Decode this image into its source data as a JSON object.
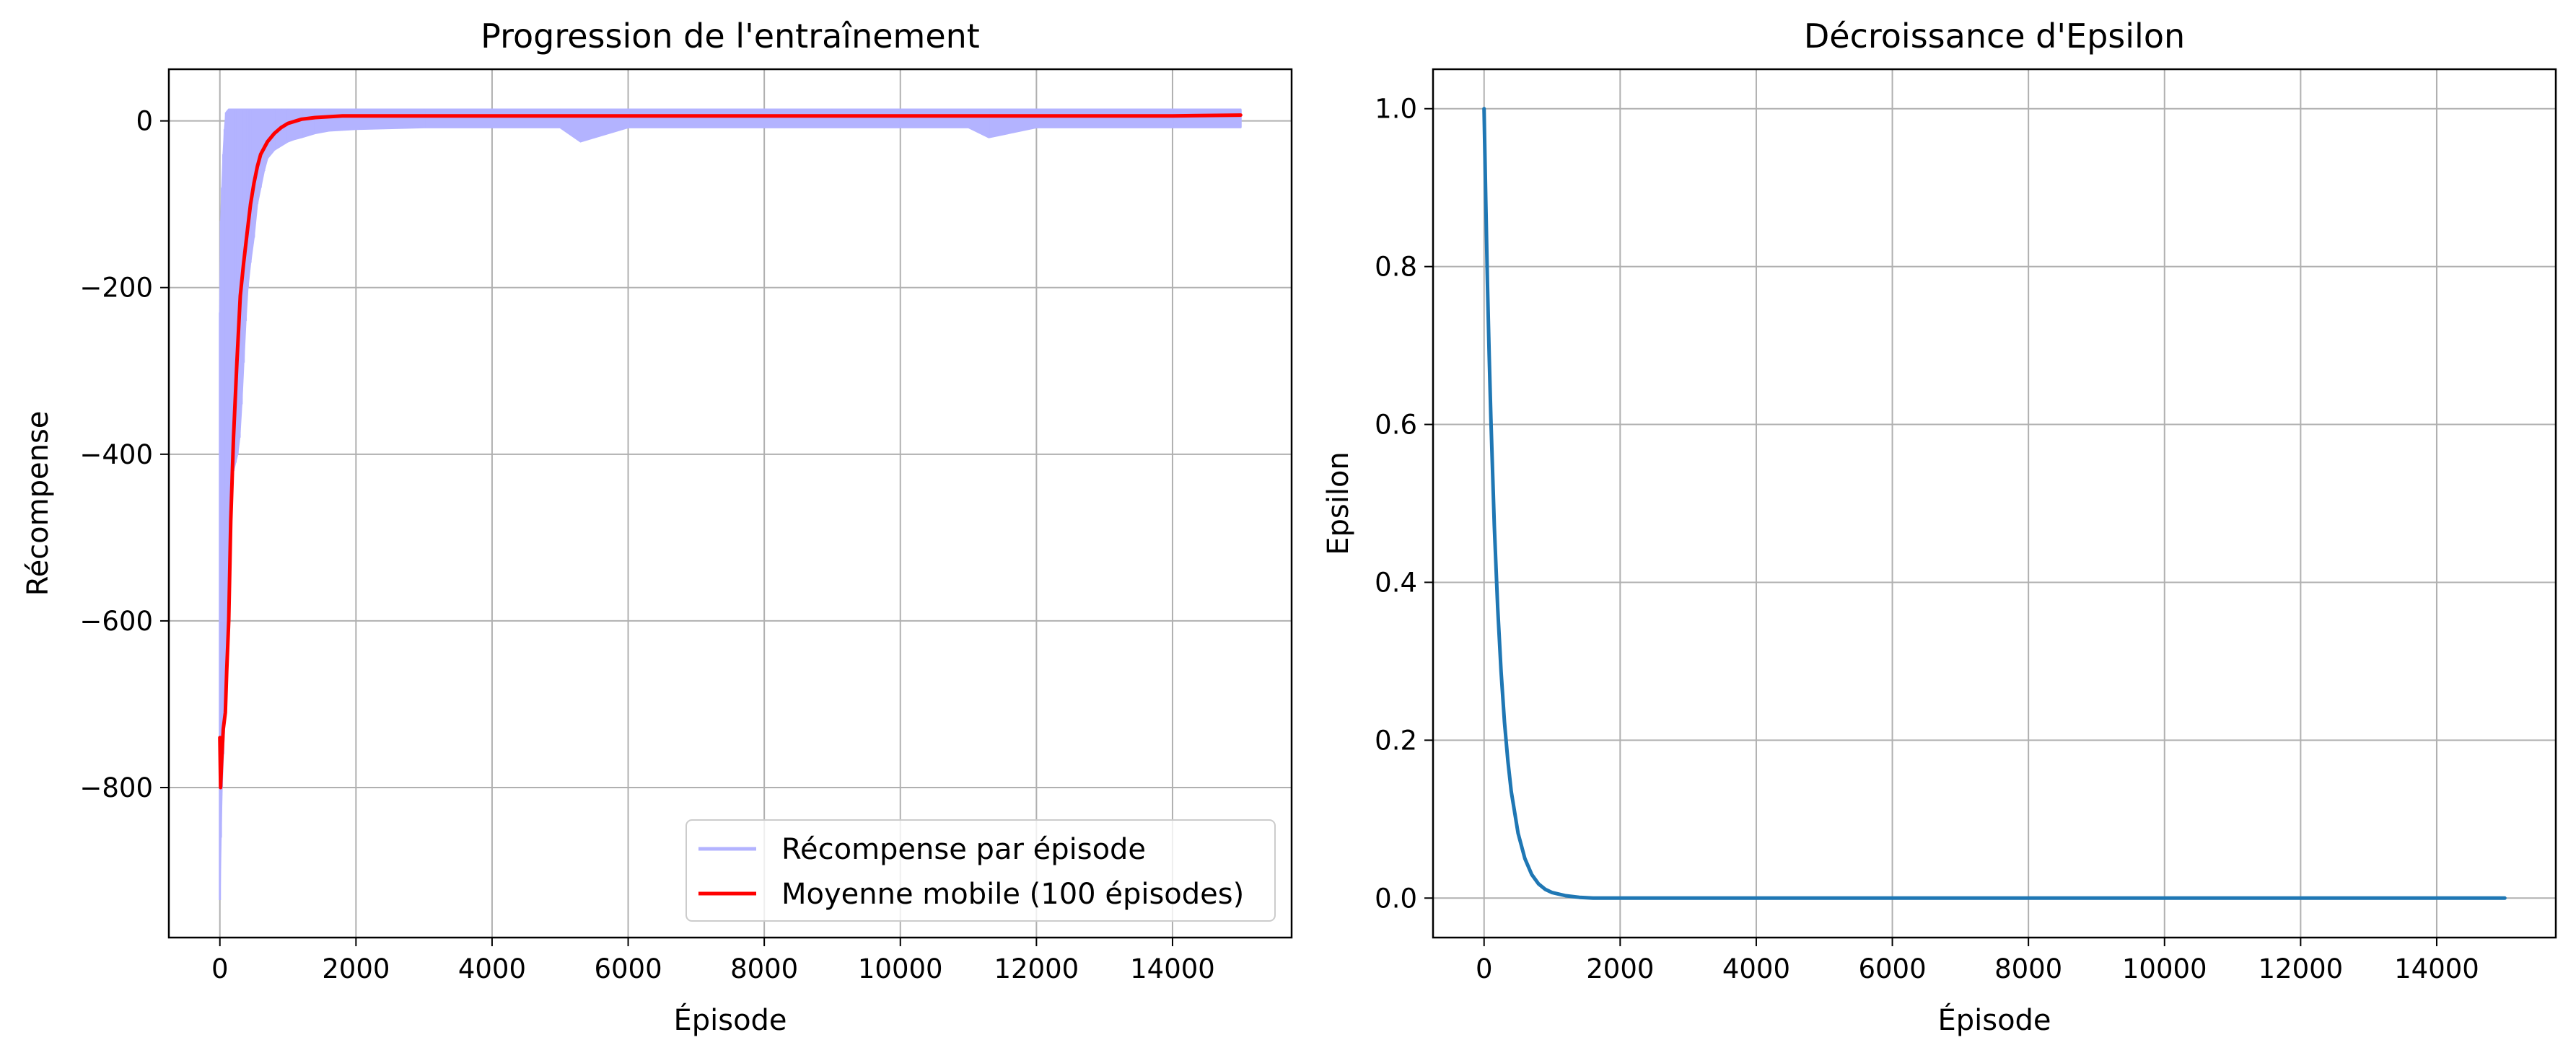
{
  "chart_data": [
    {
      "type": "line",
      "title": "Progression de l'entraînement",
      "xlabel": "Épisode",
      "ylabel": "Récompense",
      "xlim": [
        -750,
        15750
      ],
      "ylim": [
        -980,
        62
      ],
      "xticks": [
        0,
        2000,
        4000,
        6000,
        8000,
        10000,
        12000,
        14000
      ],
      "xtick_labels": [
        "0",
        "2000",
        "4000",
        "6000",
        "8000",
        "10000",
        "12000",
        "14000"
      ],
      "yticks": [
        0,
        -200,
        -400,
        -600,
        -800
      ],
      "ytick_labels": [
        "0",
        "−200",
        "−400",
        "−600",
        "−800"
      ],
      "grid": true,
      "legend_position": "lower-right",
      "series": [
        {
          "name": "Récompense par épisode",
          "color": "#b3b3ff",
          "x": [
            0,
            15,
            30,
            50,
            70,
            90,
            110,
            130,
            150,
            175,
            200,
            230,
            260,
            290,
            320,
            350,
            380,
            410,
            450,
            500,
            550,
            600,
            650,
            700,
            800,
            900,
            1000,
            1100,
            1200,
            1400,
            1600,
            2000,
            3000,
            4000,
            5000,
            5300,
            6000,
            7000,
            8000,
            9000,
            10000,
            11000,
            11300,
            12000,
            13000,
            14000,
            15000
          ],
          "min": [
            -935,
            -860,
            -800,
            -760,
            -720,
            -680,
            -600,
            -520,
            -470,
            -440,
            -420,
            -410,
            -400,
            -380,
            -340,
            -290,
            -240,
            -200,
            -170,
            -140,
            -100,
            -80,
            -60,
            -45,
            -35,
            -30,
            -25,
            -22,
            -20,
            -15,
            -12,
            -10,
            -8,
            -8,
            -8,
            -25,
            -8,
            -8,
            -8,
            -8,
            -8,
            -8,
            -20,
            -8,
            -8,
            -8,
            -8
          ],
          "max": [
            -230,
            -120,
            -80,
            -40,
            -10,
            10,
            12,
            14,
            14,
            14,
            14,
            14,
            14,
            14,
            14,
            14,
            14,
            14,
            14,
            14,
            14,
            14,
            14,
            14,
            14,
            14,
            14,
            14,
            14,
            14,
            14,
            14,
            14,
            14,
            14,
            14,
            14,
            14,
            14,
            14,
            14,
            14,
            14,
            14,
            14,
            14,
            14
          ]
        },
        {
          "name": "Moyenne mobile (100 épisodes)",
          "color": "#ff0000",
          "x": [
            0,
            10,
            25,
            50,
            80,
            100,
            130,
            160,
            200,
            250,
            300,
            350,
            400,
            450,
            500,
            550,
            600,
            700,
            800,
            900,
            1000,
            1200,
            1400,
            1600,
            1800,
            2000,
            3000,
            4000,
            5000,
            6000,
            7000,
            8000,
            9000,
            10000,
            11000,
            12000,
            13000,
            14000,
            15000
          ],
          "y": [
            -740,
            -800,
            -770,
            -730,
            -710,
            -660,
            -600,
            -480,
            -380,
            -290,
            -210,
            -170,
            -135,
            -100,
            -75,
            -55,
            -40,
            -25,
            -15,
            -8,
            -3,
            2,
            4,
            5,
            6,
            6,
            6,
            6,
            6,
            6,
            6,
            6,
            6,
            6,
            6,
            6,
            6,
            6,
            7
          ]
        }
      ]
    },
    {
      "type": "line",
      "title": "Décroissance d'Epsilon",
      "xlabel": "Épisode",
      "ylabel": "Epsilon",
      "xlim": [
        -750,
        15750
      ],
      "ylim": [
        -0.05,
        1.05
      ],
      "xticks": [
        0,
        2000,
        4000,
        6000,
        8000,
        10000,
        12000,
        14000
      ],
      "xtick_labels": [
        "0",
        "2000",
        "4000",
        "6000",
        "8000",
        "10000",
        "12000",
        "14000"
      ],
      "yticks": [
        0.0,
        0.2,
        0.4,
        0.6,
        0.8,
        1.0
      ],
      "ytick_labels": [
        "0.0",
        "0.2",
        "0.4",
        "0.6",
        "0.8",
        "1.0"
      ],
      "grid": true,
      "series": [
        {
          "color": "#1f77b4",
          "x": [
            0,
            25,
            50,
            75,
            100,
            150,
            200,
            250,
            300,
            350,
            400,
            500,
            600,
            700,
            800,
            900,
            1000,
            1200,
            1400,
            1600,
            2000,
            4000,
            6000,
            8000,
            10000,
            12000,
            14000,
            15000
          ],
          "y": [
            1.0,
            0.883,
            0.779,
            0.688,
            0.607,
            0.472,
            0.368,
            0.287,
            0.223,
            0.174,
            0.135,
            0.082,
            0.05,
            0.03,
            0.018,
            0.011,
            0.007,
            0.003,
            0.001,
            0.0,
            0.0,
            0.0,
            0.0,
            0.0,
            0.0,
            0.0,
            0.0,
            0.0
          ]
        }
      ]
    }
  ]
}
